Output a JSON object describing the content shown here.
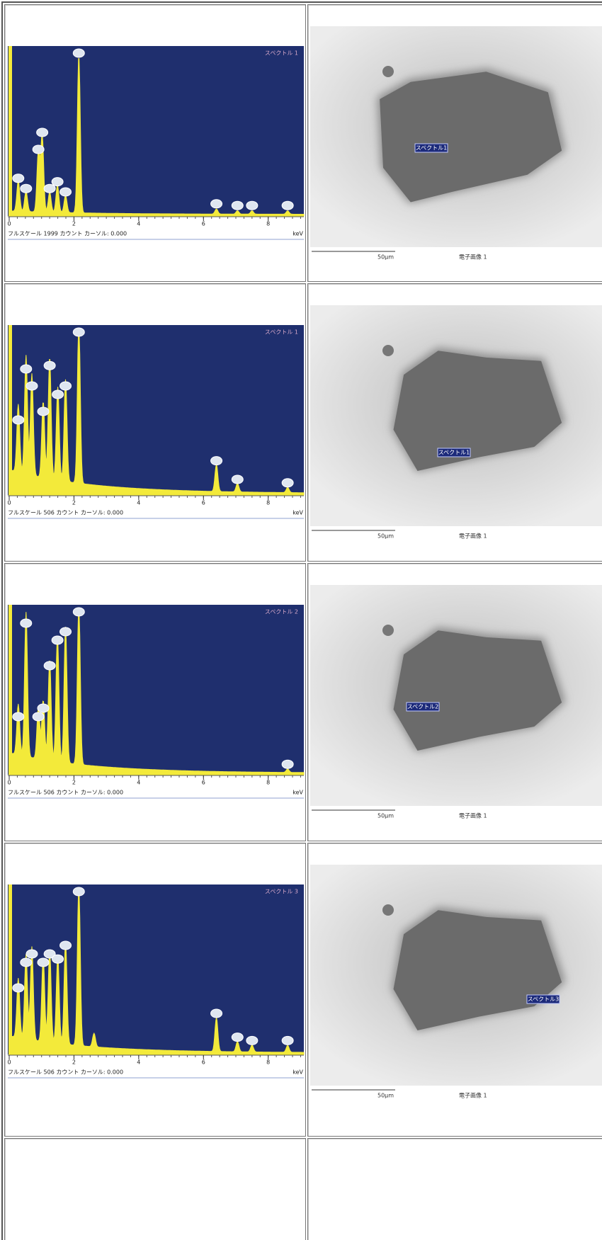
{
  "rows": [
    {
      "spectrum": {
        "title": "スペクトル 1",
        "footer": "フルスケール 1999 カウント カーソル: 0.000",
        "unit": "keV",
        "xlim": [
          0,
          9.1
        ],
        "xticks": [
          0,
          2,
          4,
          6,
          8
        ]
      },
      "image": {
        "label": "スペクトル1",
        "scale_bar": "50μm",
        "caption": "電子画像 1"
      }
    },
    {
      "spectrum": {
        "title": "スペクトル 1",
        "footer": "フルスケール 506 カウント カーソル: 0.000",
        "unit": "keV",
        "xlim": [
          0,
          9.1
        ],
        "xticks": [
          0,
          2,
          4,
          6,
          8
        ]
      },
      "image": {
        "label": "スペクトル1",
        "scale_bar": "50μm",
        "caption": "電子画像 1"
      }
    },
    {
      "spectrum": {
        "title": "スペクトル 2",
        "footer": "フルスケール 506 カウント カーソル: 0.000",
        "unit": "keV",
        "xlim": [
          0,
          9.1
        ],
        "xticks": [
          0,
          2,
          4,
          6,
          8
        ]
      },
      "image": {
        "label": "スペクトル2",
        "scale_bar": "50μm",
        "caption": "電子画像 1"
      }
    },
    {
      "spectrum": {
        "title": "スペクトル 3",
        "footer": "フルスケール 506 カウント カーソル: 0.000",
        "unit": "keV",
        "xlim": [
          0,
          9.1
        ],
        "xticks": [
          0,
          2,
          4,
          6,
          8
        ]
      },
      "image": {
        "label": "スペクトル3",
        "scale_bar": "50μm",
        "caption": "電子画像 1"
      }
    }
  ]
}
